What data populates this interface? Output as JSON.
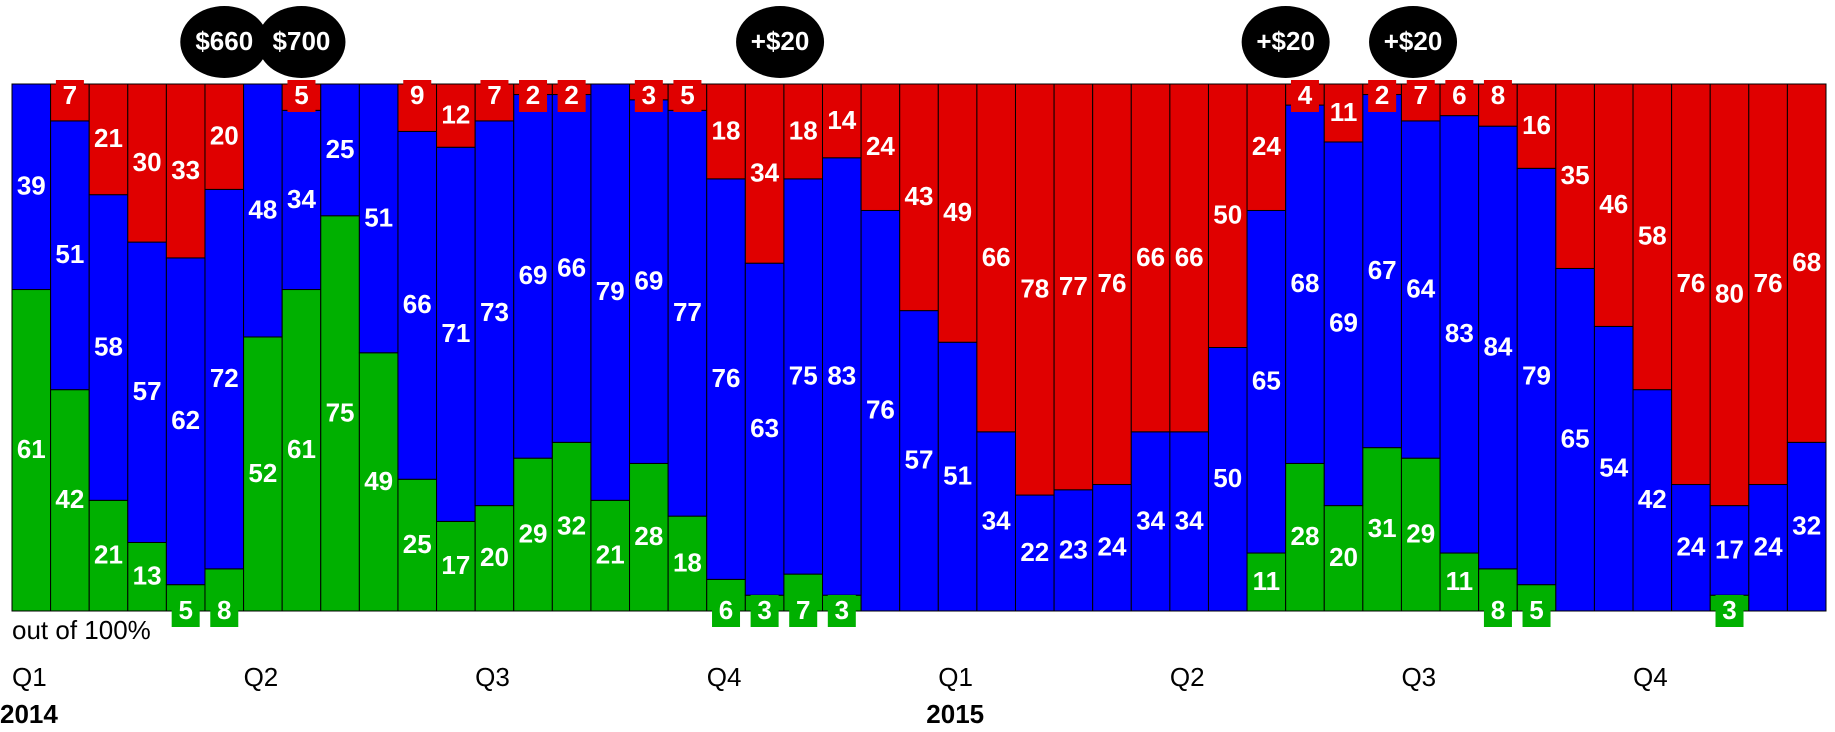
{
  "chart_data": {
    "type": "stacked_bar_100",
    "note": "out of 100%",
    "categories": [
      "Q1",
      null,
      null,
      null,
      null,
      null,
      "Q2",
      null,
      null,
      null,
      null,
      null,
      "Q3",
      null,
      null,
      null,
      null,
      null,
      "Q4",
      null,
      null,
      null,
      null,
      null,
      "Q1",
      null,
      null,
      null,
      null,
      null,
      "Q2",
      null,
      null,
      null,
      null,
      null,
      "Q3",
      null,
      null,
      null,
      null,
      null,
      "Q4",
      null,
      null,
      null,
      null
    ],
    "years": [
      "2014",
      null,
      null,
      null,
      null,
      null,
      null,
      null,
      null,
      null,
      null,
      null,
      null,
      null,
      null,
      null,
      null,
      null,
      null,
      null,
      null,
      null,
      null,
      null,
      "2015",
      null,
      null,
      null,
      null,
      null,
      null,
      null,
      null,
      null,
      null,
      null,
      null,
      null,
      null,
      null,
      null,
      null,
      null,
      null,
      null,
      null,
      null
    ],
    "annotations": [
      "$660",
      "$700",
      "+$20",
      "+$20",
      "+$20"
    ],
    "ylim": [
      0,
      100
    ],
    "series": [
      {
        "color": "#00b000",
        "values": [
          61,
          42,
          21,
          13,
          5,
          8,
          52,
          61,
          75,
          49,
          25,
          17,
          20,
          29,
          32,
          21,
          28,
          18,
          6,
          3,
          7,
          3,
          0,
          0,
          0,
          0,
          0,
          0,
          0,
          0,
          0,
          0,
          11,
          28,
          20,
          31,
          29,
          11,
          8,
          5,
          0,
          0,
          0,
          0,
          3,
          0,
          0
        ]
      },
      {
        "color": "#0000ff",
        "values": [
          39,
          51,
          58,
          57,
          62,
          72,
          48,
          34,
          25,
          51,
          66,
          71,
          73,
          69,
          66,
          79,
          69,
          77,
          76,
          63,
          75,
          83,
          76,
          57,
          51,
          34,
          22,
          23,
          24,
          34,
          34,
          50,
          65,
          68,
          69,
          67,
          64,
          83,
          84,
          79,
          65,
          54,
          42,
          24,
          17,
          24,
          32
        ]
      },
      {
        "color": "#e00000",
        "values": [
          0,
          7,
          21,
          30,
          33,
          20,
          0,
          5,
          0,
          0,
          9,
          12,
          7,
          2,
          2,
          0,
          3,
          5,
          18,
          34,
          18,
          14,
          24,
          43,
          49,
          66,
          78,
          77,
          76,
          66,
          66,
          50,
          24,
          4,
          11,
          2,
          7,
          6,
          8,
          16,
          35,
          46,
          58,
          76,
          80,
          76,
          68
        ]
      }
    ]
  }
}
